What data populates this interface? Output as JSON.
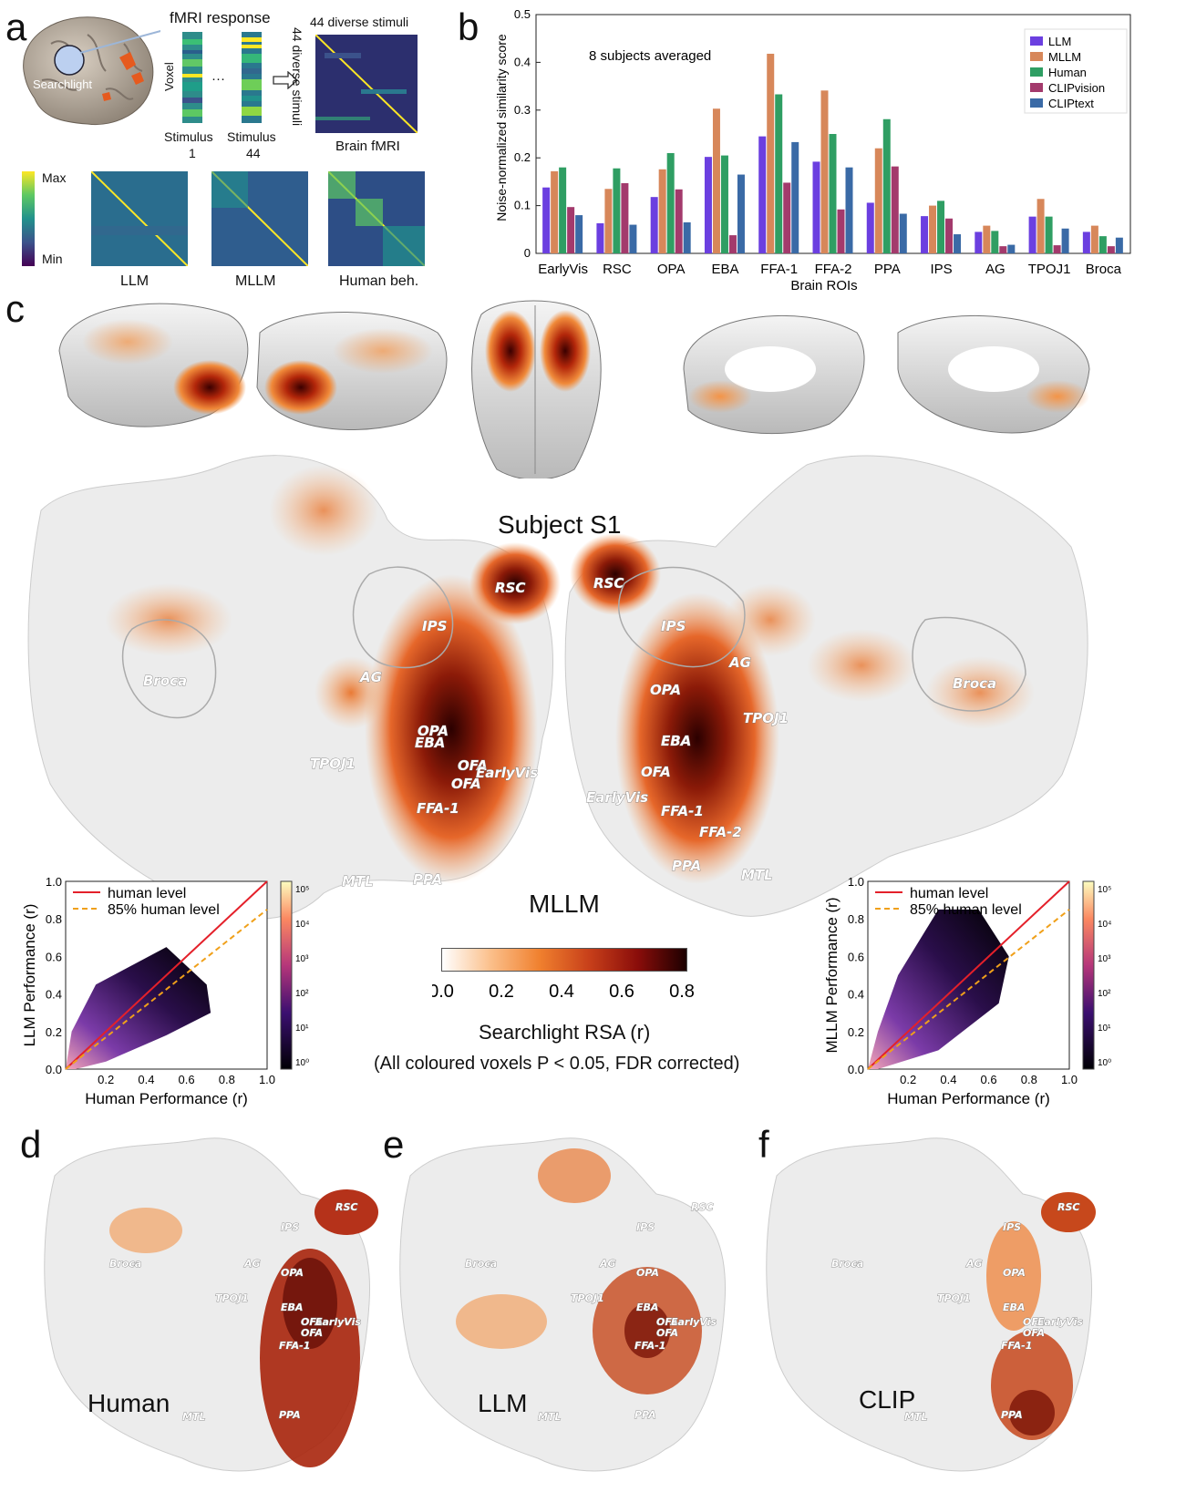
{
  "panel_letters": {
    "a": "a",
    "b": "b",
    "c": "c",
    "d": "d",
    "e": "e",
    "f": "f"
  },
  "panel_a": {
    "searchlight_label": "Searchlight",
    "fmri_response": "fMRI response",
    "voxel": "Voxel",
    "ellipsis": "···",
    "stim1_line1": "Stimulus",
    "stim1_line2": "1",
    "stim44_line1": "Stimulus",
    "stim44_line2": "44",
    "diverse_top": "44 diverse stimuli",
    "diverse_side": "44 diverse stimuli",
    "brain_fmri": "Brain fMRI",
    "cbar_max": "Max",
    "cbar_min": "Min",
    "matrix_labels": [
      "LLM",
      "MLLM",
      "Human beh."
    ]
  },
  "chart_data": [
    {
      "type": "bar",
      "title": "8 subjects averaged",
      "xlabel": "Brain ROIs",
      "ylabel": "Noise-normalized similarity score",
      "ylim": [
        0,
        0.5
      ],
      "yticks": [
        "0",
        "0.1",
        "0.2",
        "0.3",
        "0.4",
        "0.5"
      ],
      "categories": [
        "EarlyVis",
        "RSC",
        "OPA",
        "EBA",
        "FFA-1",
        "FFA-2",
        "PPA",
        "IPS",
        "AG",
        "TPOJ1",
        "Broca"
      ],
      "series": [
        {
          "name": "LLM",
          "color": "#6b3fe0",
          "values": [
            0.138,
            0.063,
            0.118,
            0.202,
            0.245,
            0.192,
            0.106,
            0.078,
            0.045,
            0.077,
            0.045
          ]
        },
        {
          "name": "MLLM",
          "color": "#d7875a",
          "values": [
            0.172,
            0.135,
            0.176,
            0.303,
            0.418,
            0.341,
            0.22,
            0.1,
            0.058,
            0.114,
            0.058
          ]
        },
        {
          "name": "Human",
          "color": "#2f9e63",
          "values": [
            0.18,
            0.178,
            0.21,
            0.205,
            0.333,
            0.25,
            0.281,
            0.11,
            0.047,
            0.077,
            0.036
          ]
        },
        {
          "name": "CLIPvision",
          "color": "#a33a6c",
          "values": [
            0.097,
            0.147,
            0.134,
            0.038,
            0.148,
            0.092,
            0.182,
            0.073,
            0.015,
            0.017,
            0.015
          ]
        },
        {
          "name": "CLIPtext",
          "color": "#3a6aa6",
          "values": [
            0.08,
            0.06,
            0.065,
            0.165,
            0.233,
            0.18,
            0.083,
            0.04,
            0.018,
            0.052,
            0.033
          ]
        }
      ]
    },
    {
      "type": "scatter",
      "xlabel": "Human Performance (r)",
      "ylabel": "LLM Performance (r)",
      "xticks": [
        "0.0",
        "0.2",
        "0.4",
        "0.6",
        "0.8",
        "1.0"
      ],
      "yticks": [
        "0.0",
        "0.2",
        "0.4",
        "0.6",
        "0.8",
        "1.0"
      ],
      "legend": [
        "human level",
        "85% human level"
      ],
      "colorbar": [
        "10⁰",
        "10¹",
        "10²",
        "10³",
        "10⁴",
        "10⁵"
      ]
    },
    {
      "type": "scatter",
      "xlabel": "Human Performance (r)",
      "ylabel": "MLLM Performance (r)",
      "xticks": [
        "0.0",
        "0.2",
        "0.4",
        "0.6",
        "0.8",
        "1.0"
      ],
      "yticks": [
        "0.0",
        "0.2",
        "0.4",
        "0.6",
        "0.8",
        "1.0"
      ],
      "legend": [
        "human level",
        "85% human level"
      ],
      "colorbar": [
        "10⁰",
        "10¹",
        "10²",
        "10³",
        "10⁴",
        "10⁵"
      ]
    }
  ],
  "panel_c": {
    "subject": "Subject S1",
    "model": "MLLM",
    "left_rois": [
      "RSC",
      "IPS",
      "AG",
      "Broca",
      "OPA",
      "TPOJ1",
      "EBA",
      "OFA",
      "EarlyVis",
      "OFA",
      "FFA-1",
      "MTL",
      "PPA"
    ],
    "right_rois": [
      "RSC",
      "IPS",
      "AG",
      "Broca",
      "OPA",
      "TPOJ1",
      "EBA",
      "OFA",
      "EarlyVis",
      "FFA-1",
      "FFA-2",
      "PPA",
      "MTL"
    ],
    "colorbar_ticks": [
      "0.0",
      "0.2",
      "0.4",
      "0.6",
      "0.8"
    ],
    "colorbar_label": "Searchlight RSA (r)",
    "note": "(All coloured voxels P < 0.05, FDR corrected)"
  },
  "bottom_maps": [
    {
      "label": "Human",
      "rois": [
        "RSC",
        "IPS",
        "Broca",
        "AG",
        "OPA",
        "TPOJ1",
        "EBA",
        "OFA",
        "EarlyVis",
        "OFA",
        "FFA-1",
        "MTL",
        "PPA"
      ]
    },
    {
      "label": "LLM",
      "rois": [
        "RSC",
        "IPS",
        "Broca",
        "AG",
        "OPA",
        "TPOJ1",
        "EBA",
        "OFA",
        "EarlyVis",
        "OFA",
        "FFA-1",
        "MTL",
        "PPA"
      ]
    },
    {
      "label": "CLIP",
      "rois": [
        "RSC",
        "IPS",
        "Broca",
        "AG",
        "OPA",
        "TPOJ1",
        "EBA",
        "OFA",
        "EarlyVis",
        "OFA",
        "FFA-1",
        "MTL",
        "PPA"
      ]
    }
  ]
}
